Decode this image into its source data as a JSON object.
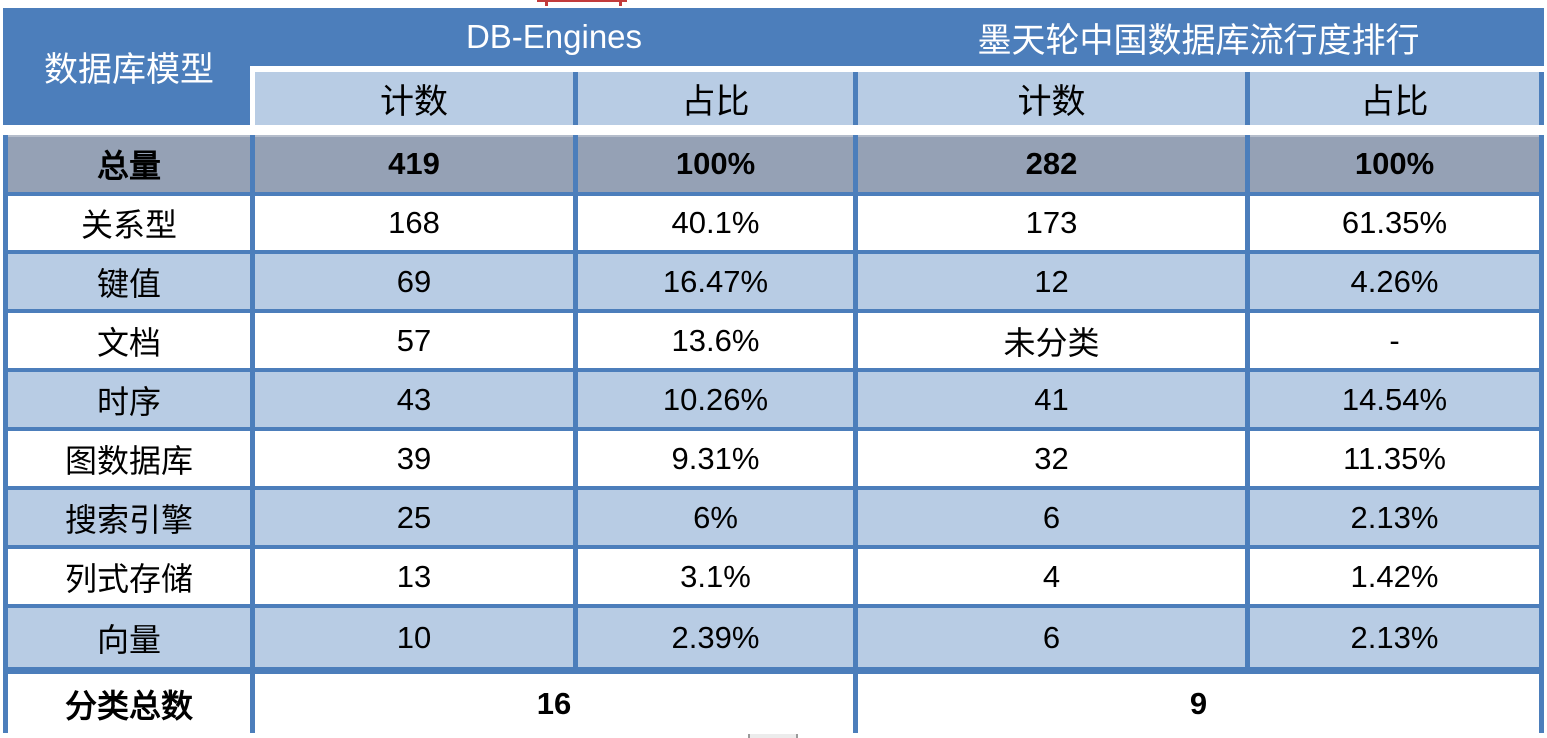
{
  "chart_data": {
    "type": "table",
    "corner_header": "数据库模型",
    "groups": [
      {
        "label": "DB-Engines",
        "subheaders": [
          "计数",
          "占比"
        ]
      },
      {
        "label": "墨天轮中国数据库流行度排行",
        "subheaders": [
          "计数",
          "占比"
        ]
      }
    ],
    "total_row": {
      "label": "总量",
      "cells": [
        "419",
        "100%",
        "282",
        "100%"
      ]
    },
    "rows": [
      {
        "label": "关系型",
        "cells": [
          "168",
          "40.1%",
          "173",
          "61.35%"
        ]
      },
      {
        "label": "键值",
        "cells": [
          "69",
          "16.47%",
          "12",
          "4.26%"
        ]
      },
      {
        "label": "文档",
        "cells": [
          "57",
          "13.6%",
          "未分类",
          "-"
        ]
      },
      {
        "label": "时序",
        "cells": [
          "43",
          "10.26%",
          "41",
          "14.54%"
        ]
      },
      {
        "label": "图数据库",
        "cells": [
          "39",
          "9.31%",
          "32",
          "11.35%"
        ]
      },
      {
        "label": "搜索引擎",
        "cells": [
          "25",
          "6%",
          "6",
          "2.13%"
        ]
      },
      {
        "label": "列式存储",
        "cells": [
          "13",
          "3.1%",
          "4",
          "1.42%"
        ]
      },
      {
        "label": "向量",
        "cells": [
          "10",
          "2.39%",
          "6",
          "2.13%"
        ]
      }
    ],
    "summary_row": {
      "label": "分类总数",
      "db_engines_total": "16",
      "motianlun_total": "9"
    }
  },
  "colors": {
    "header_blue": "#4C7EBB",
    "light_blue": "#B8CCE4",
    "total_row_gray": "#95A1B5",
    "row_white": "#FFFFFF",
    "text_black": "#000000",
    "text_white": "#FFFFFF",
    "top_artifact_red": "#C23B3B"
  }
}
